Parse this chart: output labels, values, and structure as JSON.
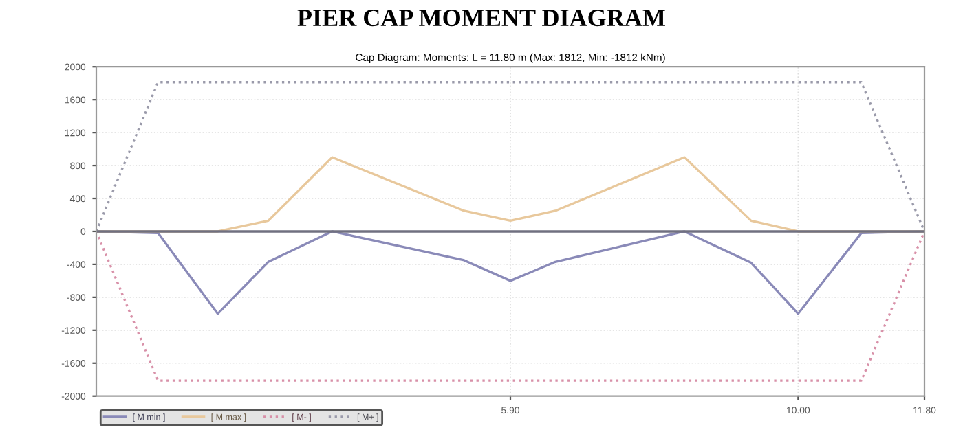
{
  "chart_data": {
    "type": "line",
    "title": "PIER CAP MOMENT DIAGRAM",
    "subtitle": "Cap Diagram: Moments: L = 11.80 m (Max: 1812, Min: -1812 kNm)",
    "series": [
      {
        "name": "[ M min ]",
        "color": "#8a8ab8",
        "line_style": "solid",
        "x": [
          0,
          0.88,
          1.73,
          2.45,
          3.36,
          5.24,
          5.9,
          6.54,
          8.38,
          9.33,
          10.0,
          10.9,
          11.8
        ],
        "values": [
          0,
          -20,
          -1000,
          -370,
          0,
          -350,
          -600,
          -370,
          0,
          -380,
          -1000,
          -20,
          0
        ]
      },
      {
        "name": "[ M max ]",
        "color": "#e8c89c",
        "line_style": "solid",
        "x": [
          0,
          1.73,
          2.45,
          3.36,
          5.24,
          5.9,
          6.54,
          8.38,
          9.33,
          10.0,
          11.8
        ],
        "values": [
          0,
          0,
          130,
          900,
          250,
          130,
          250,
          900,
          130,
          0,
          0
        ]
      },
      {
        "name": "[ M- ]",
        "color": "#d890a8",
        "line_style": "dotted",
        "x": [
          0,
          0.88,
          10.9,
          11.8
        ],
        "values": [
          0,
          -1812,
          -1812,
          0
        ]
      },
      {
        "name": "[ M+ ]",
        "color": "#9a9aaa",
        "line_style": "dotted",
        "x": [
          0,
          0.88,
          10.9,
          11.8
        ],
        "values": [
          0,
          1812,
          1812,
          0
        ]
      }
    ],
    "xlim": [
      0,
      11.8
    ],
    "xticks": [
      {
        "value": 5.9,
        "label": "5.90"
      },
      {
        "value": 10.0,
        "label": "10.00"
      },
      {
        "value": 11.8,
        "label": "11.80"
      }
    ],
    "ylim": [
      -2000,
      2000
    ],
    "yticks": [
      -2000,
      -1600,
      -1200,
      -800,
      -400,
      0,
      400,
      800,
      1200,
      1600,
      2000
    ],
    "ref_lines": [
      {
        "axis": "y",
        "value": 0,
        "color": "#707080"
      }
    ],
    "grid": true,
    "legend": "bottom left",
    "marker": "none"
  }
}
